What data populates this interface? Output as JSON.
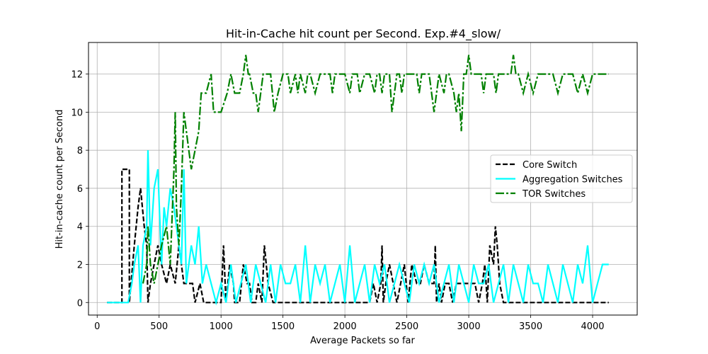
{
  "chart_data": {
    "type": "line",
    "title": "Hit-in-Cache hit count per Second. Exp.#4_slow/",
    "xlabel": "Average Packets so far",
    "ylabel": "Hit-in-cache count per Second",
    "xlim": [
      -70,
      4360
    ],
    "ylim": [
      -0.66,
      13.66
    ],
    "xticks": [
      0,
      500,
      1000,
      1500,
      2000,
      2500,
      3000,
      3500,
      4000
    ],
    "yticks": [
      0,
      2,
      4,
      6,
      8,
      10,
      12
    ],
    "grid": true,
    "legend_position": "center-right",
    "series": [
      {
        "name": "Core Switch",
        "color": "#000000",
        "dash": "dashed",
        "x": [
          80,
          200,
          200,
          260,
          260,
          300,
          330,
          350,
          380,
          400,
          410,
          430,
          460,
          490,
          520,
          560,
          590,
          630,
          660,
          700,
          740,
          770,
          790,
          830,
          860,
          920,
          1000,
          1020,
          1040,
          1070,
          1100,
          1110,
          1150,
          1180,
          1210,
          1230,
          1250,
          1280,
          1300,
          1330,
          1350,
          1380,
          1420,
          1450,
          1500,
          1600,
          1700,
          1800,
          1900,
          2000,
          2100,
          2200,
          2230,
          2260,
          2290,
          2300,
          2310,
          2330,
          2360,
          2390,
          2420,
          2450,
          2480,
          2510,
          2540,
          2580,
          2610,
          2640,
          2680,
          2720,
          2730,
          2740,
          2760,
          2780,
          2810,
          2840,
          2870,
          2900,
          2930,
          2960,
          3000,
          3050,
          3080,
          3110,
          3130,
          3150,
          3170,
          3200,
          3215,
          3230,
          3250,
          3280,
          3320,
          3400,
          3500,
          3600,
          3700,
          3800,
          3900,
          4000,
          4130
        ],
        "values": [
          0,
          0,
          7,
          7,
          0,
          3,
          5,
          6,
          4,
          3,
          0,
          1,
          2,
          3,
          2,
          1,
          2,
          1,
          3,
          1,
          1,
          1,
          0,
          1,
          0,
          0,
          0,
          3,
          0,
          2,
          1,
          0,
          0,
          2,
          1,
          1,
          0,
          0,
          1,
          0,
          3,
          1,
          0,
          0,
          0,
          0,
          0,
          0,
          0,
          0,
          0,
          0,
          1,
          0,
          1,
          3,
          0,
          1,
          2,
          1,
          0,
          1,
          2,
          0,
          2,
          1,
          1,
          2,
          1,
          1,
          3,
          0,
          1,
          0,
          1,
          1,
          0,
          1,
          1,
          1,
          1,
          1,
          0,
          1,
          2,
          0,
          3,
          2,
          4,
          3,
          1,
          0,
          0,
          0,
          0,
          0,
          0,
          0,
          0,
          0,
          0
        ]
      },
      {
        "name": "Aggregation Switches",
        "color": "#00ffff",
        "dash": "solid",
        "x": [
          80,
          200,
          250,
          280,
          300,
          330,
          350,
          370,
          400,
          410,
          430,
          460,
          490,
          520,
          540,
          560,
          590,
          620,
          640,
          660,
          680,
          700,
          720,
          760,
          790,
          820,
          850,
          880,
          920,
          960,
          1000,
          1040,
          1080,
          1120,
          1160,
          1200,
          1240,
          1280,
          1320,
          1360,
          1400,
          1440,
          1480,
          1520,
          1560,
          1600,
          1640,
          1680,
          1720,
          1760,
          1800,
          1840,
          1880,
          1920,
          1960,
          2000,
          2040,
          2080,
          2120,
          2160,
          2200,
          2240,
          2280,
          2320,
          2360,
          2400,
          2440,
          2480,
          2520,
          2560,
          2600,
          2640,
          2680,
          2720,
          2760,
          2800,
          2840,
          2880,
          2920,
          2960,
          3000,
          3040,
          3080,
          3120,
          3160,
          3200,
          3240,
          3280,
          3320,
          3360,
          3400,
          3440,
          3480,
          3520,
          3560,
          3600,
          3640,
          3680,
          3720,
          3760,
          3800,
          3840,
          3880,
          3920,
          3960,
          4000,
          4040,
          4080,
          4130
        ],
        "values": [
          0,
          0,
          0,
          1,
          2,
          3,
          0,
          3,
          4,
          8,
          3,
          6,
          7,
          2,
          5,
          4,
          6,
          5,
          4,
          3,
          2,
          7,
          1,
          3,
          2,
          4,
          1,
          2,
          1,
          0,
          1,
          0,
          2,
          0,
          1,
          2,
          0,
          2,
          1,
          0,
          2,
          0,
          2,
          1,
          1,
          2,
          0,
          3,
          0,
          2,
          1,
          2,
          0,
          1,
          2,
          0,
          3,
          0,
          1,
          2,
          0,
          2,
          1,
          2,
          0,
          1,
          2,
          1,
          0,
          2,
          1,
          2,
          1,
          2,
          0,
          1,
          2,
          0,
          2,
          1,
          0,
          2,
          1,
          1,
          2,
          0,
          1,
          2,
          0,
          2,
          1,
          0,
          2,
          1,
          1,
          0,
          2,
          1,
          0,
          2,
          1,
          0,
          2,
          1,
          3,
          0,
          1,
          2,
          2
        ]
      },
      {
        "name": "TOR Switches",
        "color": "#008000",
        "dash": "dashdot",
        "x": [
          370,
          400,
          410,
          430,
          460,
          490,
          520,
          560,
          590,
          620,
          630,
          640,
          660,
          680,
          700,
          720,
          760,
          790,
          820,
          830,
          840,
          860,
          880,
          920,
          940,
          1000,
          1050,
          1080,
          1110,
          1150,
          1180,
          1200,
          1220,
          1230,
          1260,
          1280,
          1300,
          1320,
          1340,
          1360,
          1380,
          1400,
          1430,
          1460,
          1500,
          1520,
          1540,
          1560,
          1600,
          1620,
          1640,
          1680,
          1700,
          1720,
          1760,
          1800,
          1840,
          1880,
          1900,
          1920,
          1960,
          2000,
          2040,
          2060,
          2080,
          2100,
          2120,
          2160,
          2200,
          2240,
          2260,
          2280,
          2300,
          2320,
          2360,
          2380,
          2400,
          2420,
          2440,
          2460,
          2480,
          2500,
          2520,
          2560,
          2580,
          2600,
          2620,
          2640,
          2680,
          2720,
          2760,
          2800,
          2820,
          2840,
          2880,
          2900,
          2920,
          2940,
          2960,
          2980,
          3000,
          3020,
          3060,
          3100,
          3120,
          3140,
          3160,
          3180,
          3200,
          3220,
          3240,
          3260,
          3300,
          3340,
          3360,
          3380,
          3400,
          3440,
          3480,
          3520,
          3560,
          3600,
          3640,
          3680,
          3720,
          3760,
          3800,
          3840,
          3880,
          3920,
          3960,
          4000,
          4040,
          4080,
          4130
        ],
        "values": [
          1,
          2,
          4,
          2,
          1,
          2,
          3,
          4,
          2,
          7,
          10,
          5,
          3,
          6,
          10,
          9,
          7,
          8,
          9,
          10,
          11,
          11,
          11,
          12,
          10,
          10,
          11,
          12,
          11,
          11,
          12,
          13,
          12,
          12,
          11,
          11,
          10,
          11,
          12,
          12,
          12,
          12,
          10,
          11,
          12,
          12,
          12,
          11,
          12,
          11,
          12,
          11,
          12,
          12,
          11,
          12,
          12,
          12,
          11,
          12,
          12,
          12,
          11,
          12,
          12,
          12,
          11,
          12,
          12,
          11,
          12,
          12,
          11,
          12,
          12,
          10,
          11,
          12,
          12,
          11,
          12,
          12,
          12,
          12,
          12,
          11,
          12,
          12,
          12,
          10,
          12,
          11,
          12,
          12,
          11,
          10,
          11,
          9,
          12,
          12,
          13,
          12,
          12,
          12,
          11,
          12,
          12,
          12,
          12,
          11,
          12,
          12,
          12,
          12,
          13,
          12,
          12,
          11,
          12,
          11,
          12,
          12,
          12,
          12,
          11,
          12,
          12,
          12,
          11,
          12,
          11,
          12,
          12,
          12,
          12
        ]
      }
    ]
  }
}
